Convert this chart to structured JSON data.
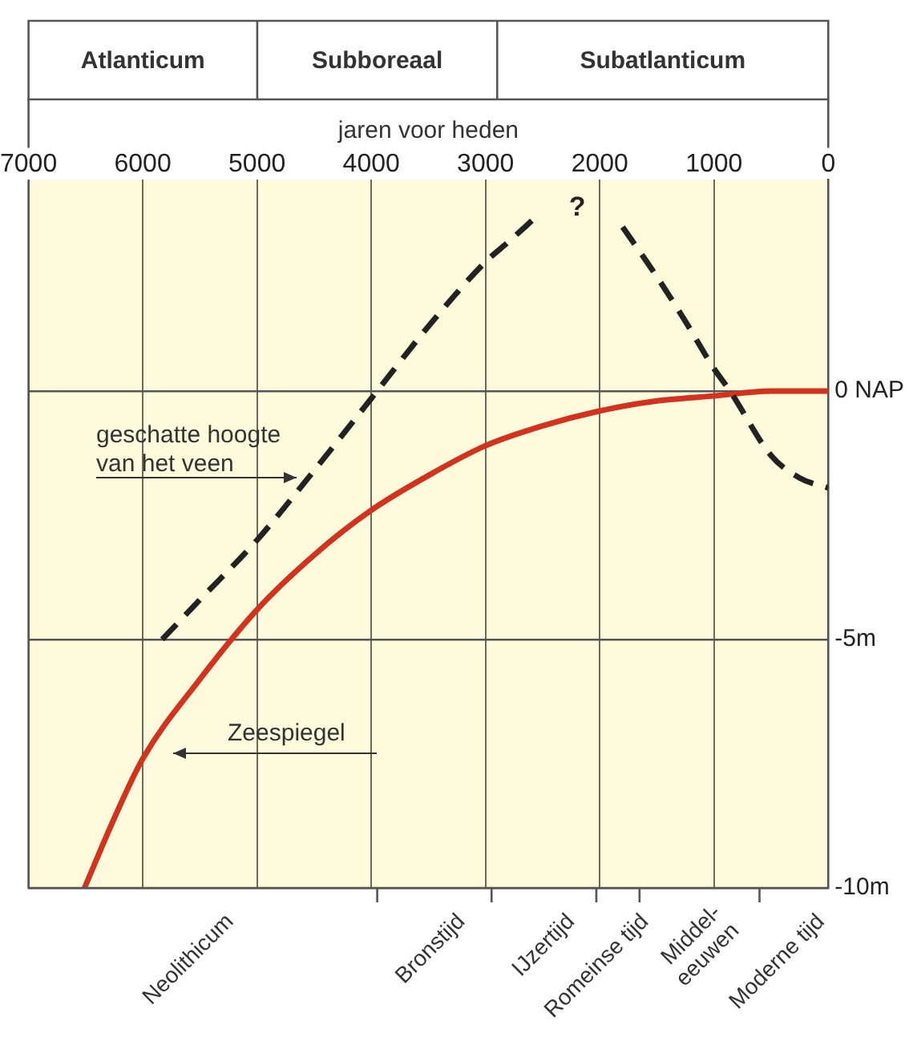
{
  "chart_data": {
    "type": "line",
    "xlabel": "jaren voor heden",
    "xlim": [
      7000,
      0
    ],
    "xticks": [
      7000,
      6000,
      5000,
      4000,
      3000,
      2000,
      1000,
      0
    ],
    "ylim": [
      -10,
      4.25
    ],
    "yticks": [
      {
        "value": 0,
        "label": "0 NAP"
      },
      {
        "value": -5,
        "label": "-5m"
      },
      {
        "value": -10,
        "label": "-10m"
      }
    ],
    "grid": true,
    "legend": false,
    "marker": "none",
    "series": [
      {
        "name": "geschatte hoogte van het veen",
        "color": "#222222",
        "line_style": "dashed",
        "x": [
          5830,
          5500,
          5000,
          4500,
          4000,
          3500,
          3000,
          2800,
          2560,
          2200,
          1800,
          1500,
          1250,
          1000,
          860,
          500,
          250,
          0
        ],
        "values": [
          -5,
          -4.2,
          -3.0,
          -1.6,
          -0.15,
          1.3,
          2.6,
          3.0,
          3.5,
          null,
          3.3,
          2.3,
          1.4,
          0.45,
          0,
          -1.3,
          -1.75,
          -1.95
        ]
      },
      {
        "name": "Zeespiegel",
        "color": "#d2321e",
        "line_style": "solid",
        "x": [
          6510,
          6250,
          6000,
          5500,
          5000,
          4500,
          4000,
          3500,
          3000,
          2500,
          2000,
          1500,
          1000,
          500,
          0
        ],
        "values": [
          -10,
          -8.6,
          -7.4,
          -5.8,
          -4.4,
          -3.3,
          -2.4,
          -1.7,
          -1.1,
          -0.7,
          -0.4,
          -0.2,
          -0.1,
          0,
          0
        ]
      }
    ],
    "annotations": [
      "Atlanticum",
      "Subboreaal",
      "Subatlanticum",
      "?",
      "Neolithicum",
      "Bronstijd",
      "IJzertijd",
      "Romeinse tijd",
      "Middel-\neeuwen",
      "Moderne tijd"
    ]
  }
}
